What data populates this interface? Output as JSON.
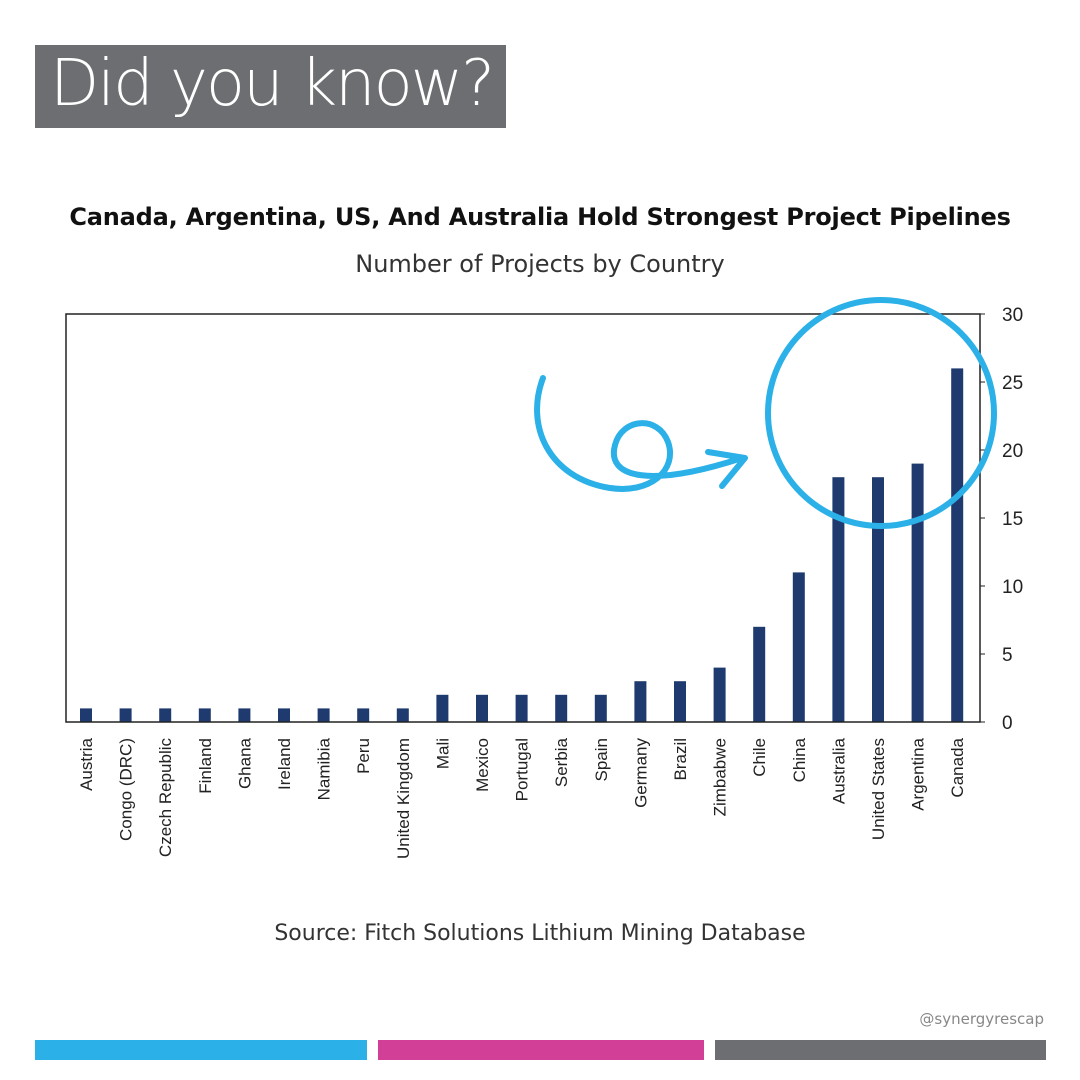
{
  "banner": {
    "text": "Did you know?"
  },
  "chart_data": {
    "type": "bar",
    "title": "Canada, Argentina, US, And Australia Hold Strongest Project Pipelines",
    "subtitle": "Number of Projects by Country",
    "categories": [
      "Austria",
      "Congo (DRC)",
      "Czech Republic",
      "Finland",
      "Ghana",
      "Ireland",
      "Namibia",
      "Peru",
      "United Kingdom",
      "Mali",
      "Mexico",
      "Portugal",
      "Serbia",
      "Spain",
      "Germany",
      "Brazil",
      "Zimbabwe",
      "Chile",
      "China",
      "Australia",
      "United States",
      "Argentina",
      "Canada"
    ],
    "values": [
      1,
      1,
      1,
      1,
      1,
      1,
      1,
      1,
      1,
      2,
      2,
      2,
      2,
      2,
      3,
      3,
      4,
      7,
      11,
      18,
      18,
      19,
      26
    ],
    "ylim": [
      0,
      30
    ],
    "yticks": [
      0,
      5,
      10,
      15,
      20,
      25,
      30
    ],
    "y_axis_side": "right",
    "grid": false,
    "bar_color": "#1f3a6e",
    "source": "Source: Fitch Solutions Lithium Mining Database"
  },
  "annotation": {
    "color": "#2bb0e8"
  },
  "watermark": "@synergyrescap",
  "stripes": [
    "#2bb0e8",
    "#d23f96",
    "#6d6e71"
  ]
}
